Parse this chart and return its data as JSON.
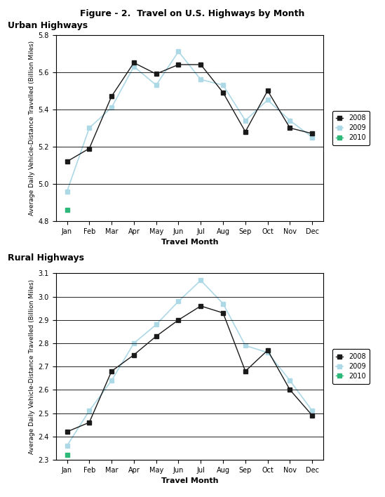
{
  "title": "Figure - 2.  Travel on U.S. Highways by Month",
  "months": [
    "Jan",
    "Feb",
    "Mar",
    "Apr",
    "May",
    "Jun",
    "Jul",
    "Aug",
    "Sep",
    "Oct",
    "Nov",
    "Dec"
  ],
  "urban": {
    "label": "Urban Highways",
    "ylabel": "Average Daily Vehicle-Distance Travelled (Billion Miles)",
    "xlabel": "Travel Month",
    "ylim": [
      4.8,
      5.8
    ],
    "yticks": [
      4.8,
      5.0,
      5.2,
      5.4,
      5.6,
      5.8
    ],
    "y2008": [
      5.12,
      5.19,
      5.47,
      5.65,
      5.59,
      5.64,
      5.64,
      5.49,
      5.28,
      5.5,
      5.3,
      5.27
    ],
    "y2009": [
      4.96,
      5.3,
      5.41,
      5.63,
      5.53,
      5.71,
      5.56,
      5.53,
      5.34,
      5.45,
      5.34,
      5.25
    ],
    "y2010": [
      4.86,
      null,
      null,
      null,
      null,
      null,
      null,
      null,
      null,
      null,
      null,
      null
    ]
  },
  "rural": {
    "label": "Rural Highways",
    "ylabel": "Average Daily Vehicle-Distance Travelled (Billion Miles)",
    "xlabel": "Travel Month",
    "ylim": [
      2.3,
      3.1
    ],
    "yticks": [
      2.3,
      2.4,
      2.5,
      2.6,
      2.7,
      2.8,
      2.9,
      3.0,
      3.1
    ],
    "y2008": [
      2.42,
      2.46,
      2.68,
      2.75,
      2.83,
      2.9,
      2.96,
      2.93,
      2.68,
      2.77,
      2.6,
      2.49
    ],
    "y2009": [
      2.36,
      2.51,
      2.64,
      2.8,
      2.88,
      2.98,
      3.07,
      2.97,
      2.79,
      2.76,
      2.64,
      2.51
    ],
    "y2010": [
      2.32,
      null,
      null,
      null,
      null,
      null,
      null,
      null,
      null,
      null,
      null,
      null
    ]
  },
  "color_2008": "#1a1a1a",
  "color_2009": "#add8e6",
  "color_2010": "#2db87a",
  "title_color": "#000000",
  "section_label_color": "#000000",
  "title_fontsize": 9,
  "section_label_fontsize": 9,
  "axis_label_fontsize": 8,
  "tick_fontsize": 7,
  "legend_fontsize": 7
}
